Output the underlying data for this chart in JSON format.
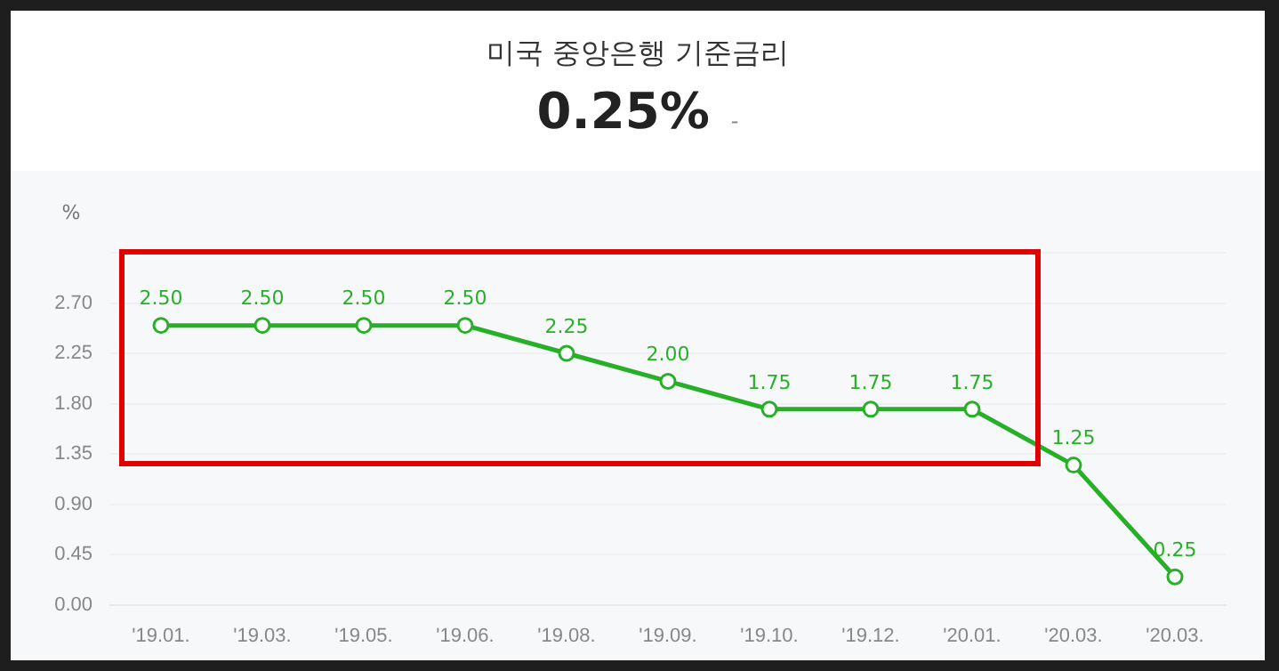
{
  "chart_data": {
    "type": "line",
    "title": "미국 중앙은행 기준금리",
    "subtitle": "0.25%",
    "annotations": [
      "-"
    ],
    "ylabel": "%",
    "categories": [
      "'19.01.",
      "'19.03.",
      "'19.05.",
      "'19.06.",
      "'19.08.",
      "'19.09.",
      "'19.10.",
      "'19.12.",
      "'20.01.",
      "'20.03.",
      "'20.03."
    ],
    "series": [
      {
        "color": "#27b027",
        "values": [
          2.5,
          2.5,
          2.5,
          2.5,
          2.25,
          2.0,
          1.75,
          1.75,
          1.75,
          1.25,
          0.25
        ],
        "value_labels": [
          "2.50",
          "2.50",
          "2.50",
          "2.50",
          "2.25",
          "2.00",
          "1.75",
          "1.75",
          "1.75",
          "1.25",
          "0.25"
        ]
      }
    ],
    "ylim": [
      0,
      3.15
    ],
    "yticks": [
      {
        "value": 0,
        "label": "0.00"
      },
      {
        "value": 0.45,
        "label": "0.45"
      },
      {
        "value": 0.9,
        "label": "0.90"
      },
      {
        "value": 1.35,
        "label": "1.35"
      },
      {
        "value": 1.8,
        "label": "1.80"
      },
      {
        "value": 2.25,
        "label": "2.25"
      },
      {
        "value": 2.7,
        "label": "2.70"
      },
      {
        "value": 3.15,
        "label": null
      }
    ],
    "grid": "y",
    "legend": false,
    "marker": "circle",
    "line_style": "solid"
  }
}
